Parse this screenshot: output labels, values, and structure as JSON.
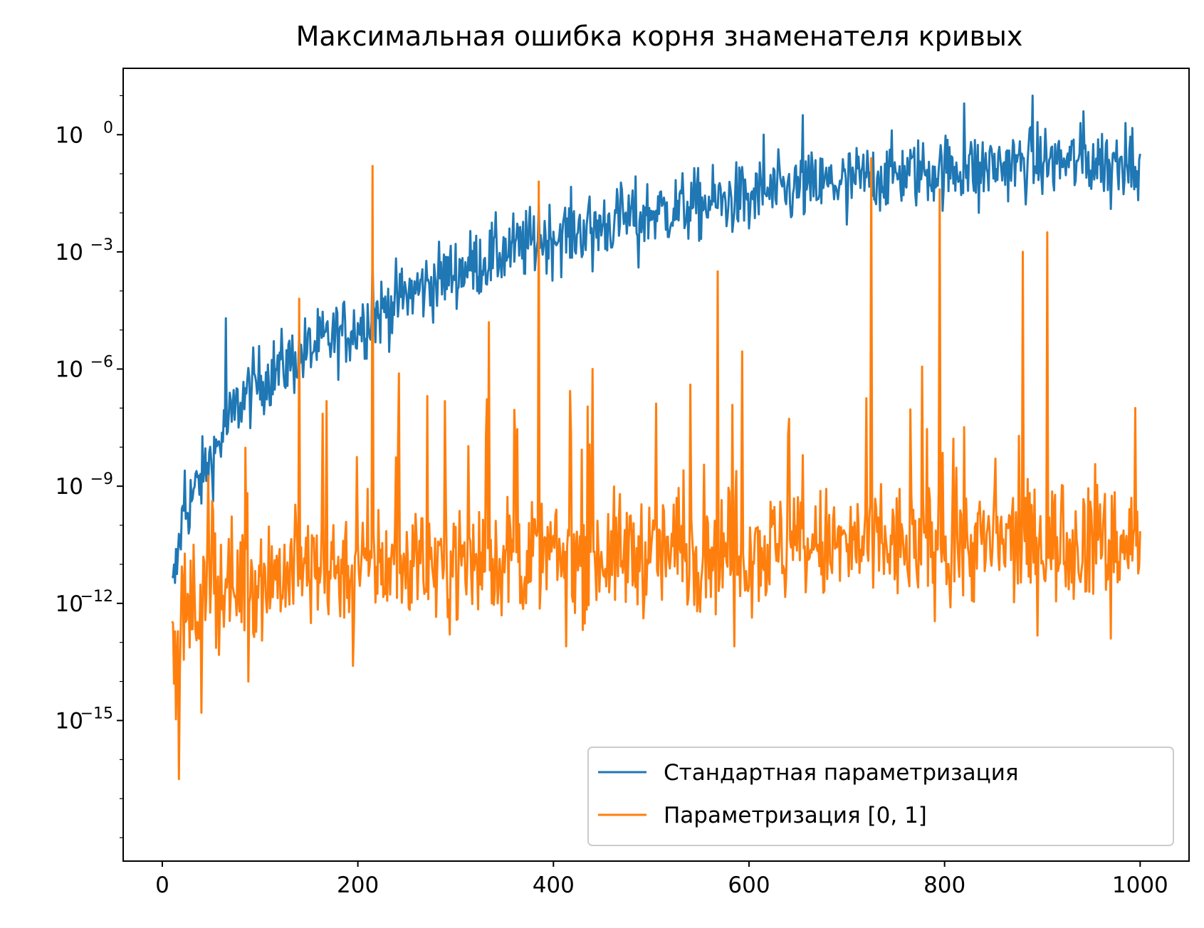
{
  "chart_data": {
    "type": "line",
    "title": "Максимальная ошибка корня знаменателя кривых",
    "xlabel": "",
    "ylabel": "",
    "xscale": "linear",
    "yscale": "log",
    "xlim": [
      -40,
      1050
    ],
    "ylim_log10": [
      -18.6,
      1.7
    ],
    "grid": false,
    "legend_position": "lower-right",
    "x_ticks": [
      {
        "value": 0,
        "label": "0"
      },
      {
        "value": 200,
        "label": "200"
      },
      {
        "value": 400,
        "label": "400"
      },
      {
        "value": 600,
        "label": "600"
      },
      {
        "value": 800,
        "label": "800"
      },
      {
        "value": 1000,
        "label": "1000"
      }
    ],
    "y_ticks": [
      {
        "exp": 0,
        "base": "10",
        "label": "0"
      },
      {
        "exp": -3,
        "base": "10",
        "label": "−3"
      },
      {
        "exp": -6,
        "base": "10",
        "label": "−6"
      },
      {
        "exp": -9,
        "base": "10",
        "label": "−9"
      },
      {
        "exp": -12,
        "base": "10",
        "label": "−12"
      },
      {
        "exp": -15,
        "base": "10",
        "label": "−15"
      }
    ],
    "series": [
      {
        "name": "Стандартная параметризация",
        "color": "#1f77b4",
        "x_range": [
          10,
          1000
        ],
        "log10_envelope": {
          "x": [
            10,
            15,
            20,
            30,
            40,
            50,
            60,
            70,
            80,
            100,
            150,
            200,
            250,
            300,
            350,
            400,
            450,
            500,
            550,
            600,
            650,
            700,
            750,
            800,
            850,
            900,
            950,
            1000
          ],
          "log10_median": [
            -11.8,
            -11.0,
            -9.9,
            -9.3,
            -8.8,
            -8.3,
            -7.8,
            -7.3,
            -6.8,
            -6.3,
            -5.5,
            -4.9,
            -4.1,
            -3.5,
            -3.0,
            -2.6,
            -2.3,
            -2.0,
            -1.8,
            -1.6,
            -1.4,
            -1.2,
            -1.0,
            -0.9,
            -0.8,
            -0.7,
            -0.7,
            -0.6
          ],
          "spread": 0.9
        },
        "log10_peaks": [
          {
            "x": 16,
            "y": -10.7
          },
          {
            "x": 23,
            "y": -8.6
          },
          {
            "x": 65,
            "y": -4.7
          },
          {
            "x": 215,
            "y": -3.2
          },
          {
            "x": 385,
            "y": -1.8
          },
          {
            "x": 470,
            "y": -1.4
          },
          {
            "x": 615,
            "y": 0.0
          },
          {
            "x": 655,
            "y": 0.5
          },
          {
            "x": 820,
            "y": 0.8
          },
          {
            "x": 890,
            "y": 1.0
          },
          {
            "x": 942,
            "y": 0.6
          },
          {
            "x": 985,
            "y": 0.3
          }
        ],
        "log10_dips": [
          {
            "x": 440,
            "y": -3.5
          },
          {
            "x": 487,
            "y": -3.4
          },
          {
            "x": 600,
            "y": -2.4
          },
          {
            "x": 700,
            "y": -2.3
          },
          {
            "x": 835,
            "y": -2.0
          },
          {
            "x": 970,
            "y": -1.9
          }
        ]
      },
      {
        "name": "Параметризация [0, 1]",
        "color": "#ff7f0e",
        "x_range": [
          10,
          1000
        ],
        "log10_envelope": {
          "x": [
            10,
            20,
            50,
            100,
            200,
            400,
            600,
            800,
            1000
          ],
          "log10_median": [
            -13.5,
            -12.5,
            -11.6,
            -11.3,
            -11.0,
            -10.8,
            -10.6,
            -10.5,
            -10.4
          ],
          "spread": 1.5
        },
        "log10_peaks": [
          {
            "x": 140,
            "y": -4.2
          },
          {
            "x": 215,
            "y": -0.8
          },
          {
            "x": 385,
            "y": -1.2
          },
          {
            "x": 334,
            "y": -4.8
          },
          {
            "x": 440,
            "y": -6.0
          },
          {
            "x": 540,
            "y": -6.4
          },
          {
            "x": 568,
            "y": -3.5
          },
          {
            "x": 725,
            "y": -0.6
          },
          {
            "x": 795,
            "y": -1.4
          },
          {
            "x": 880,
            "y": -3.0
          },
          {
            "x": 905,
            "y": -2.5
          },
          {
            "x": 995,
            "y": -7.0
          }
        ],
        "log10_dips": [
          {
            "x": 17,
            "y": -16.5
          },
          {
            "x": 40,
            "y": -14.8
          },
          {
            "x": 88,
            "y": -14.0
          },
          {
            "x": 195,
            "y": -13.6
          },
          {
            "x": 413,
            "y": -13.1
          },
          {
            "x": 585,
            "y": -13.1
          },
          {
            "x": 970,
            "y": -12.9
          }
        ]
      }
    ]
  }
}
